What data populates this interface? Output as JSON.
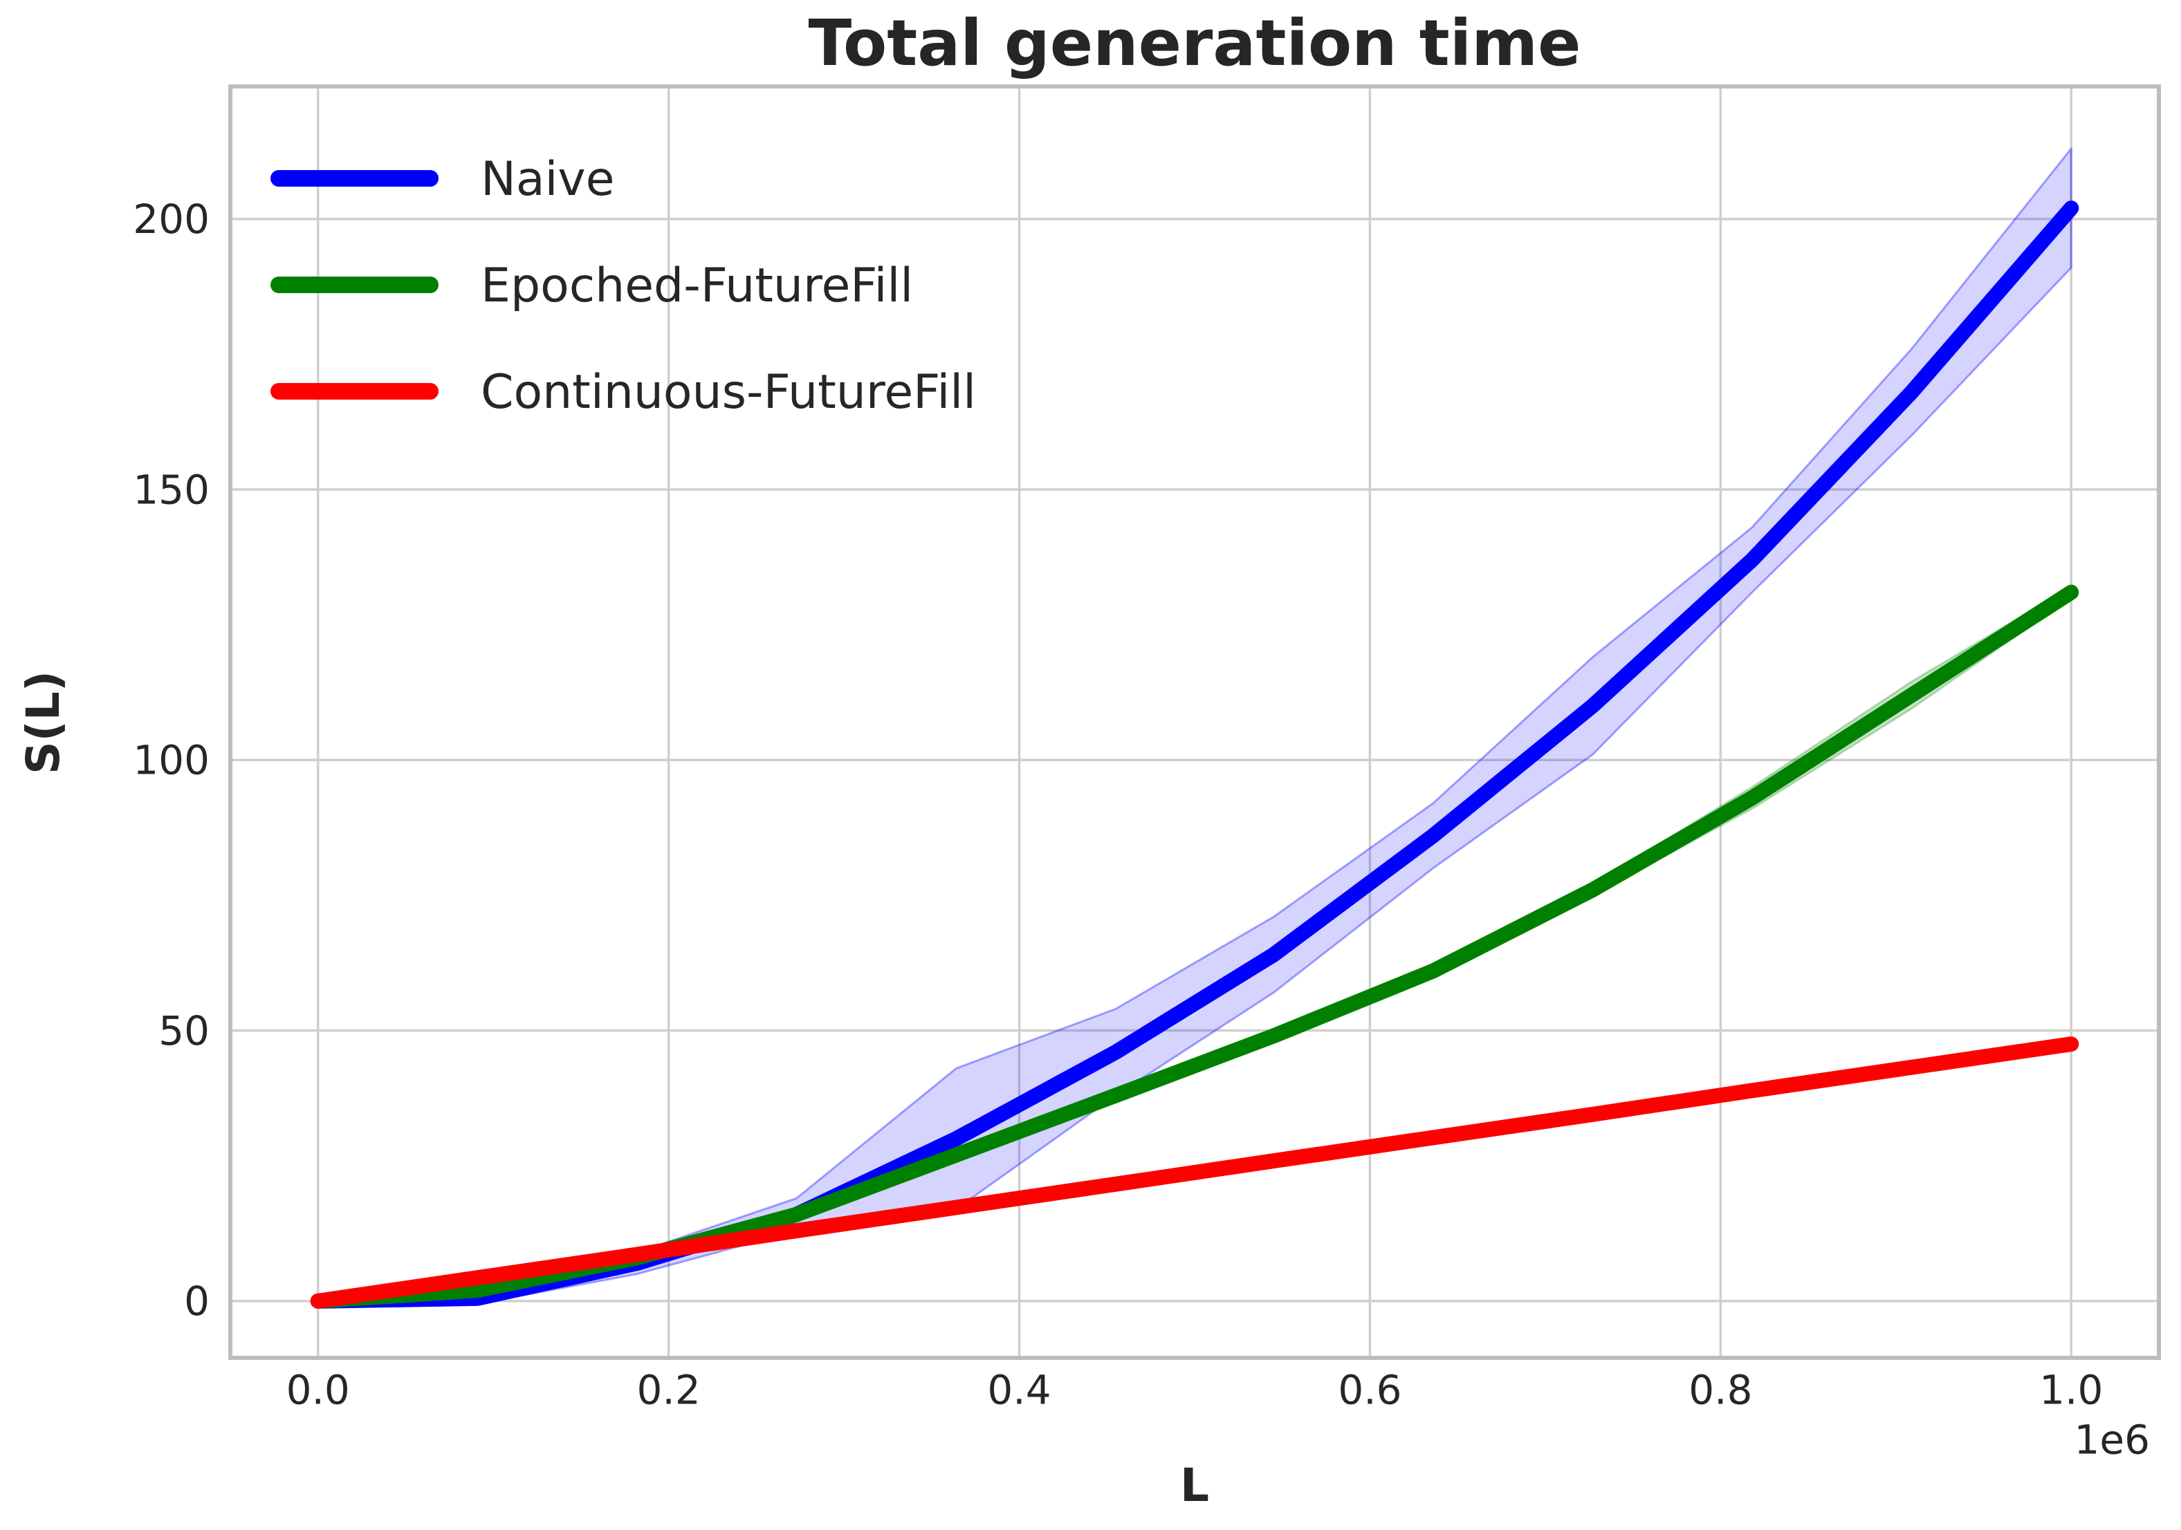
{
  "chart_data": {
    "type": "line",
    "title": "Total generation time",
    "xlabel": "L",
    "ylabel": "S(L)",
    "x_offset_label": "1e6",
    "x_unit_multiplier": 1000000,
    "grid": true,
    "legend_position": "upper left",
    "xlim": [
      -0.05,
      1.05
    ],
    "ylim": [
      -10.5,
      224.5
    ],
    "xticks": [
      0.0,
      0.2,
      0.4,
      0.6,
      0.8,
      1.0
    ],
    "xtick_labels": [
      "0.0",
      "0.2",
      "0.4",
      "0.6",
      "0.8",
      "1.0"
    ],
    "yticks": [
      0,
      50,
      100,
      150,
      200
    ],
    "ytick_labels": [
      "0",
      "50",
      "100",
      "150",
      "200"
    ],
    "x": [
      0,
      0.091,
      0.182,
      0.273,
      0.364,
      0.455,
      0.545,
      0.636,
      0.727,
      0.818,
      0.909,
      1.0
    ],
    "series": [
      {
        "name": "Naive",
        "color": "#0000ff",
        "band_fill": "rgba(0,0,255,0.17)",
        "band_edge": "rgba(0,0,255,0.35)",
        "values": [
          0,
          0.5,
          7,
          16,
          30,
          46,
          64,
          86,
          110,
          137,
          168,
          202
        ],
        "band_upper": [
          0.3,
          1.5,
          9,
          19,
          43,
          54,
          71,
          92,
          119,
          143,
          176,
          213
        ],
        "band_lower": [
          -0.3,
          -0.5,
          5,
          13,
          17,
          38,
          57,
          80,
          101,
          131,
          160,
          191
        ]
      },
      {
        "name": "Epoched-FutureFill",
        "color": "#008000",
        "band_fill": "rgba(0,128,0,0.22)",
        "band_edge": "rgba(0,128,0,0.25)",
        "values": [
          0,
          2,
          8,
          16,
          27,
          38,
          49,
          61,
          76,
          93,
          112,
          131
        ],
        "band_upper": [
          0,
          2,
          8,
          16,
          27,
          38,
          49,
          61,
          77,
          95,
          114.5,
          132
        ],
        "band_lower": [
          0,
          2,
          8,
          16,
          27,
          38,
          49,
          61,
          75,
          91,
          109.5,
          130
        ]
      },
      {
        "name": "Continuous-FutureFill",
        "color": "#ff0000",
        "values": [
          0,
          4.3,
          8.6,
          13,
          17.3,
          21.6,
          25.9,
          30.2,
          34.5,
          38.9,
          43.2,
          47.5
        ]
      }
    ]
  }
}
